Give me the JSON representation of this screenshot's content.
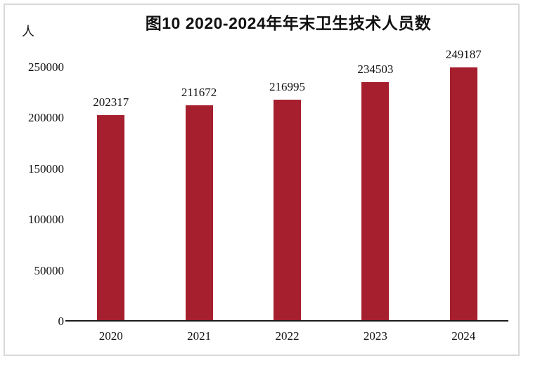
{
  "page": {
    "background": "#ffffff"
  },
  "chart_data": {
    "type": "bar",
    "title": "图10  2020-2024年年末卫生技术人员数",
    "unit_label": "人",
    "categories": [
      "2020",
      "2021",
      "2022",
      "2023",
      "2024"
    ],
    "values": [
      202317,
      211672,
      216995,
      234503,
      249187
    ],
    "value_labels": [
      "202317",
      "211672",
      "216995",
      "234503",
      "249187"
    ],
    "y_ticks": [
      0,
      50000,
      100000,
      150000,
      200000,
      250000
    ],
    "y_tick_labels": [
      "0",
      "50000",
      "100000",
      "150000",
      "200000",
      "250000"
    ],
    "ylim": [
      0,
      250000
    ],
    "xlabel": "",
    "ylabel": "人",
    "grid": false,
    "legend_position": "none",
    "bar_color": "#A61F2E",
    "axis_color": "#1a1a1a",
    "frame_border_color": "#d9d9d9",
    "text_color": "#111111"
  }
}
